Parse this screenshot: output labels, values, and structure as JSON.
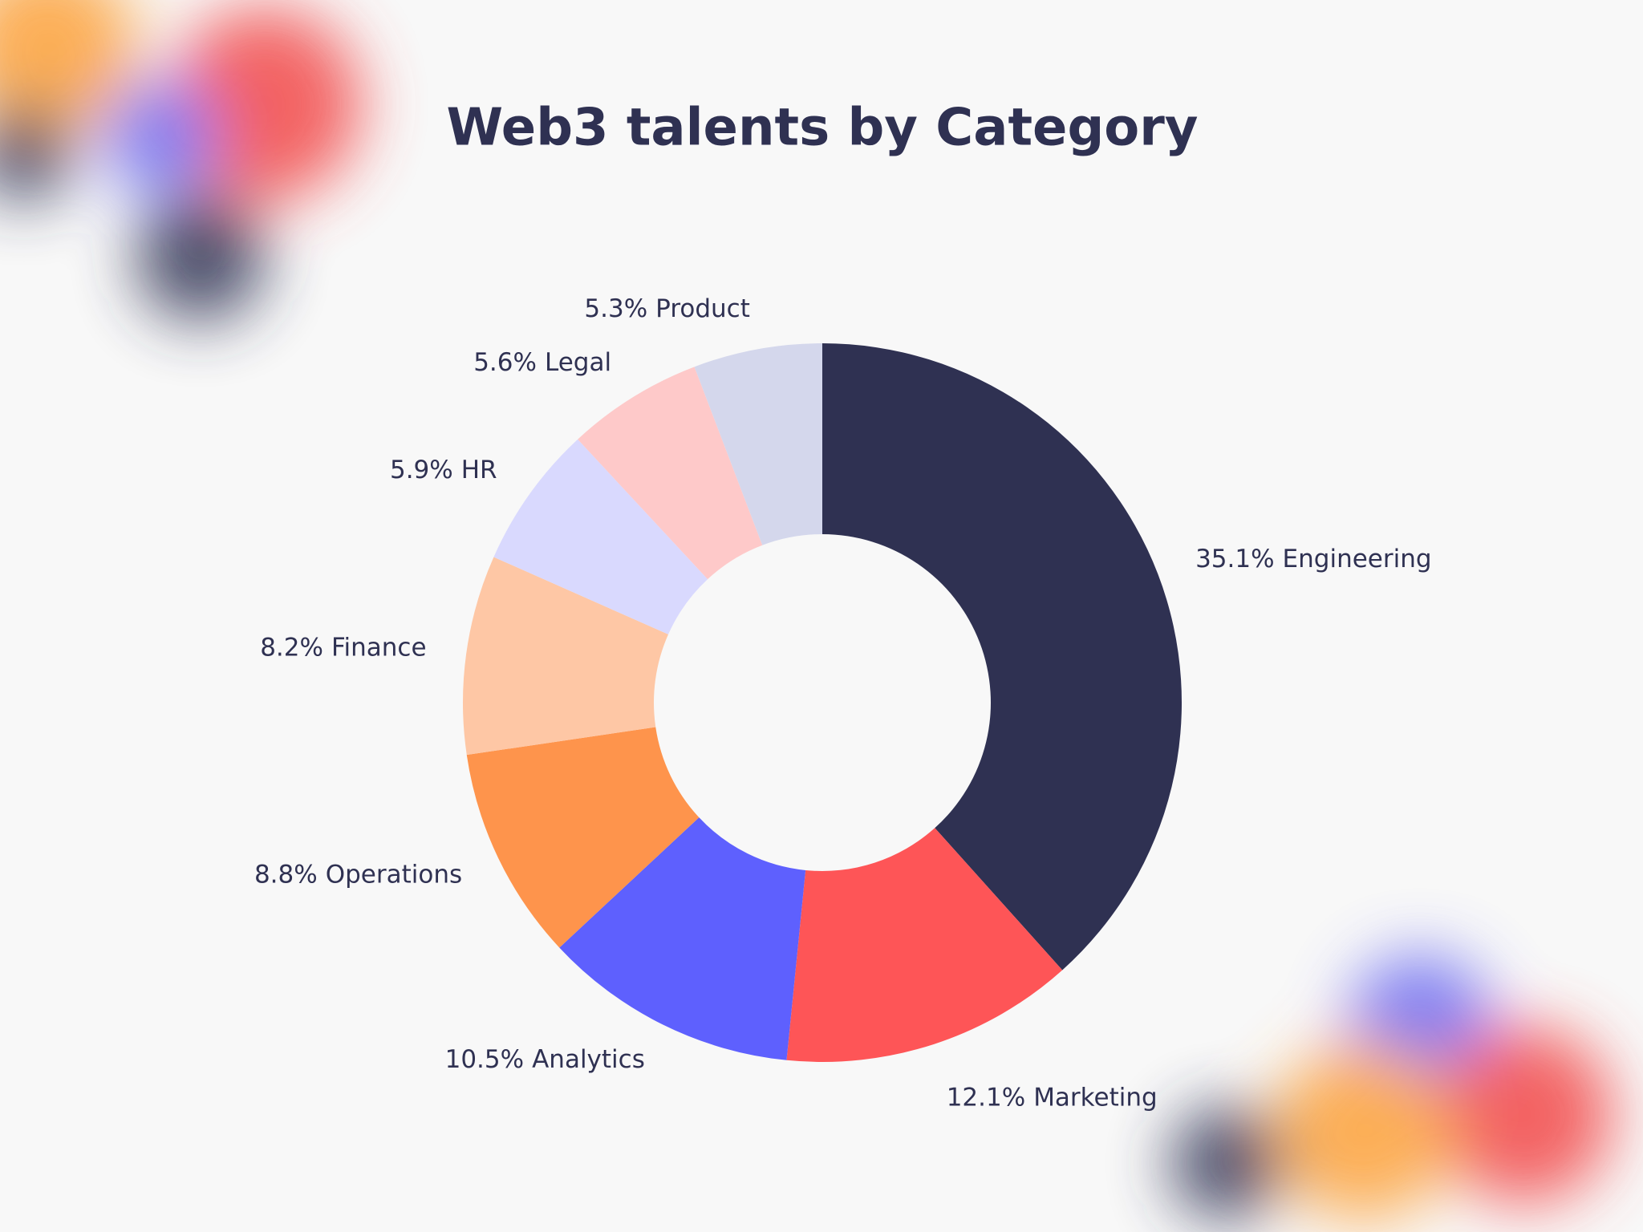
{
  "chart_data": {
    "type": "donut",
    "title": "Web3 talents by Category",
    "categories": [
      "Engineering",
      "Marketing",
      "Analytics",
      "Operations",
      "Finance",
      "HR",
      "Legal",
      "Product"
    ],
    "values": [
      35.1,
      12.1,
      10.5,
      8.8,
      8.2,
      5.9,
      5.6,
      5.3
    ],
    "value_labels": [
      "35.1%",
      "12.1%",
      "10.5%",
      "8.8%",
      "8.2%",
      "5.9%",
      "5.6%",
      "5.3%"
    ],
    "colors": [
      "#2f3152",
      "#fe5557",
      "#5e60fe",
      "#fe944c",
      "#fec7a5",
      "#d9d9fe",
      "#fec9c9",
      "#d4d7ec"
    ]
  }
}
